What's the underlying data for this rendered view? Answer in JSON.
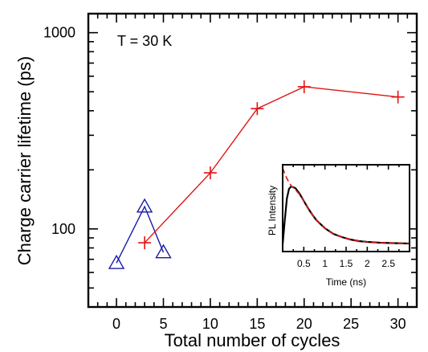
{
  "chart_data": {
    "type": "scatter",
    "xlabel": "Total number of cycles",
    "ylabel": "Charge carrier lifetime (ps)",
    "yscale": "log",
    "xlim": [
      -3,
      32
    ],
    "ylim": [
      40,
      1250
    ],
    "x_ticks": [
      "0",
      "5",
      "10",
      "15",
      "20",
      "25",
      "30"
    ],
    "y_ticks": [
      "100",
      "1000"
    ],
    "annotation": "T = 30 K",
    "grid": false,
    "series": [
      {
        "marker": "triangle",
        "color": "#1a1aa6",
        "x": [
          0,
          3,
          5
        ],
        "y": [
          67,
          130,
          76
        ]
      },
      {
        "marker": "plus",
        "color": "#e01414",
        "x": [
          3,
          10,
          15,
          20,
          30
        ],
        "y": [
          85,
          193,
          410,
          530,
          470
        ]
      }
    ],
    "inset": {
      "type": "line",
      "xlabel": "Time (ns)",
      "ylabel": "PL Intensity",
      "x_ticks": [
        "0.5",
        "1",
        "1.5",
        "2",
        "2.5"
      ],
      "xlim": [
        0,
        3.0
      ],
      "series": [
        {
          "style": "solid",
          "color": "#000000",
          "x": [
            0.0,
            0.05,
            0.1,
            0.15,
            0.2,
            0.3,
            0.4,
            0.5,
            0.6,
            0.7,
            0.8,
            1.0,
            1.2,
            1.4,
            1.6,
            1.8,
            2.0,
            2.3,
            2.6,
            3.0
          ],
          "y": [
            0.05,
            0.35,
            0.62,
            0.74,
            0.77,
            0.75,
            0.68,
            0.59,
            0.5,
            0.42,
            0.35,
            0.25,
            0.18,
            0.14,
            0.11,
            0.09,
            0.08,
            0.07,
            0.065,
            0.06
          ]
        },
        {
          "style": "dashed",
          "color": "#e01414",
          "x": [
            0.0,
            0.05,
            0.1,
            0.15,
            0.2,
            0.3,
            0.4,
            0.5,
            0.6,
            0.7,
            0.8,
            1.0,
            1.2,
            1.4,
            1.6,
            1.8,
            2.0,
            2.3,
            2.6,
            3.0
          ],
          "y": [
            1.0,
            0.93,
            0.87,
            0.82,
            0.78,
            0.73,
            0.67,
            0.59,
            0.5,
            0.42,
            0.35,
            0.25,
            0.18,
            0.14,
            0.11,
            0.09,
            0.08,
            0.07,
            0.065,
            0.06
          ]
        }
      ]
    }
  }
}
